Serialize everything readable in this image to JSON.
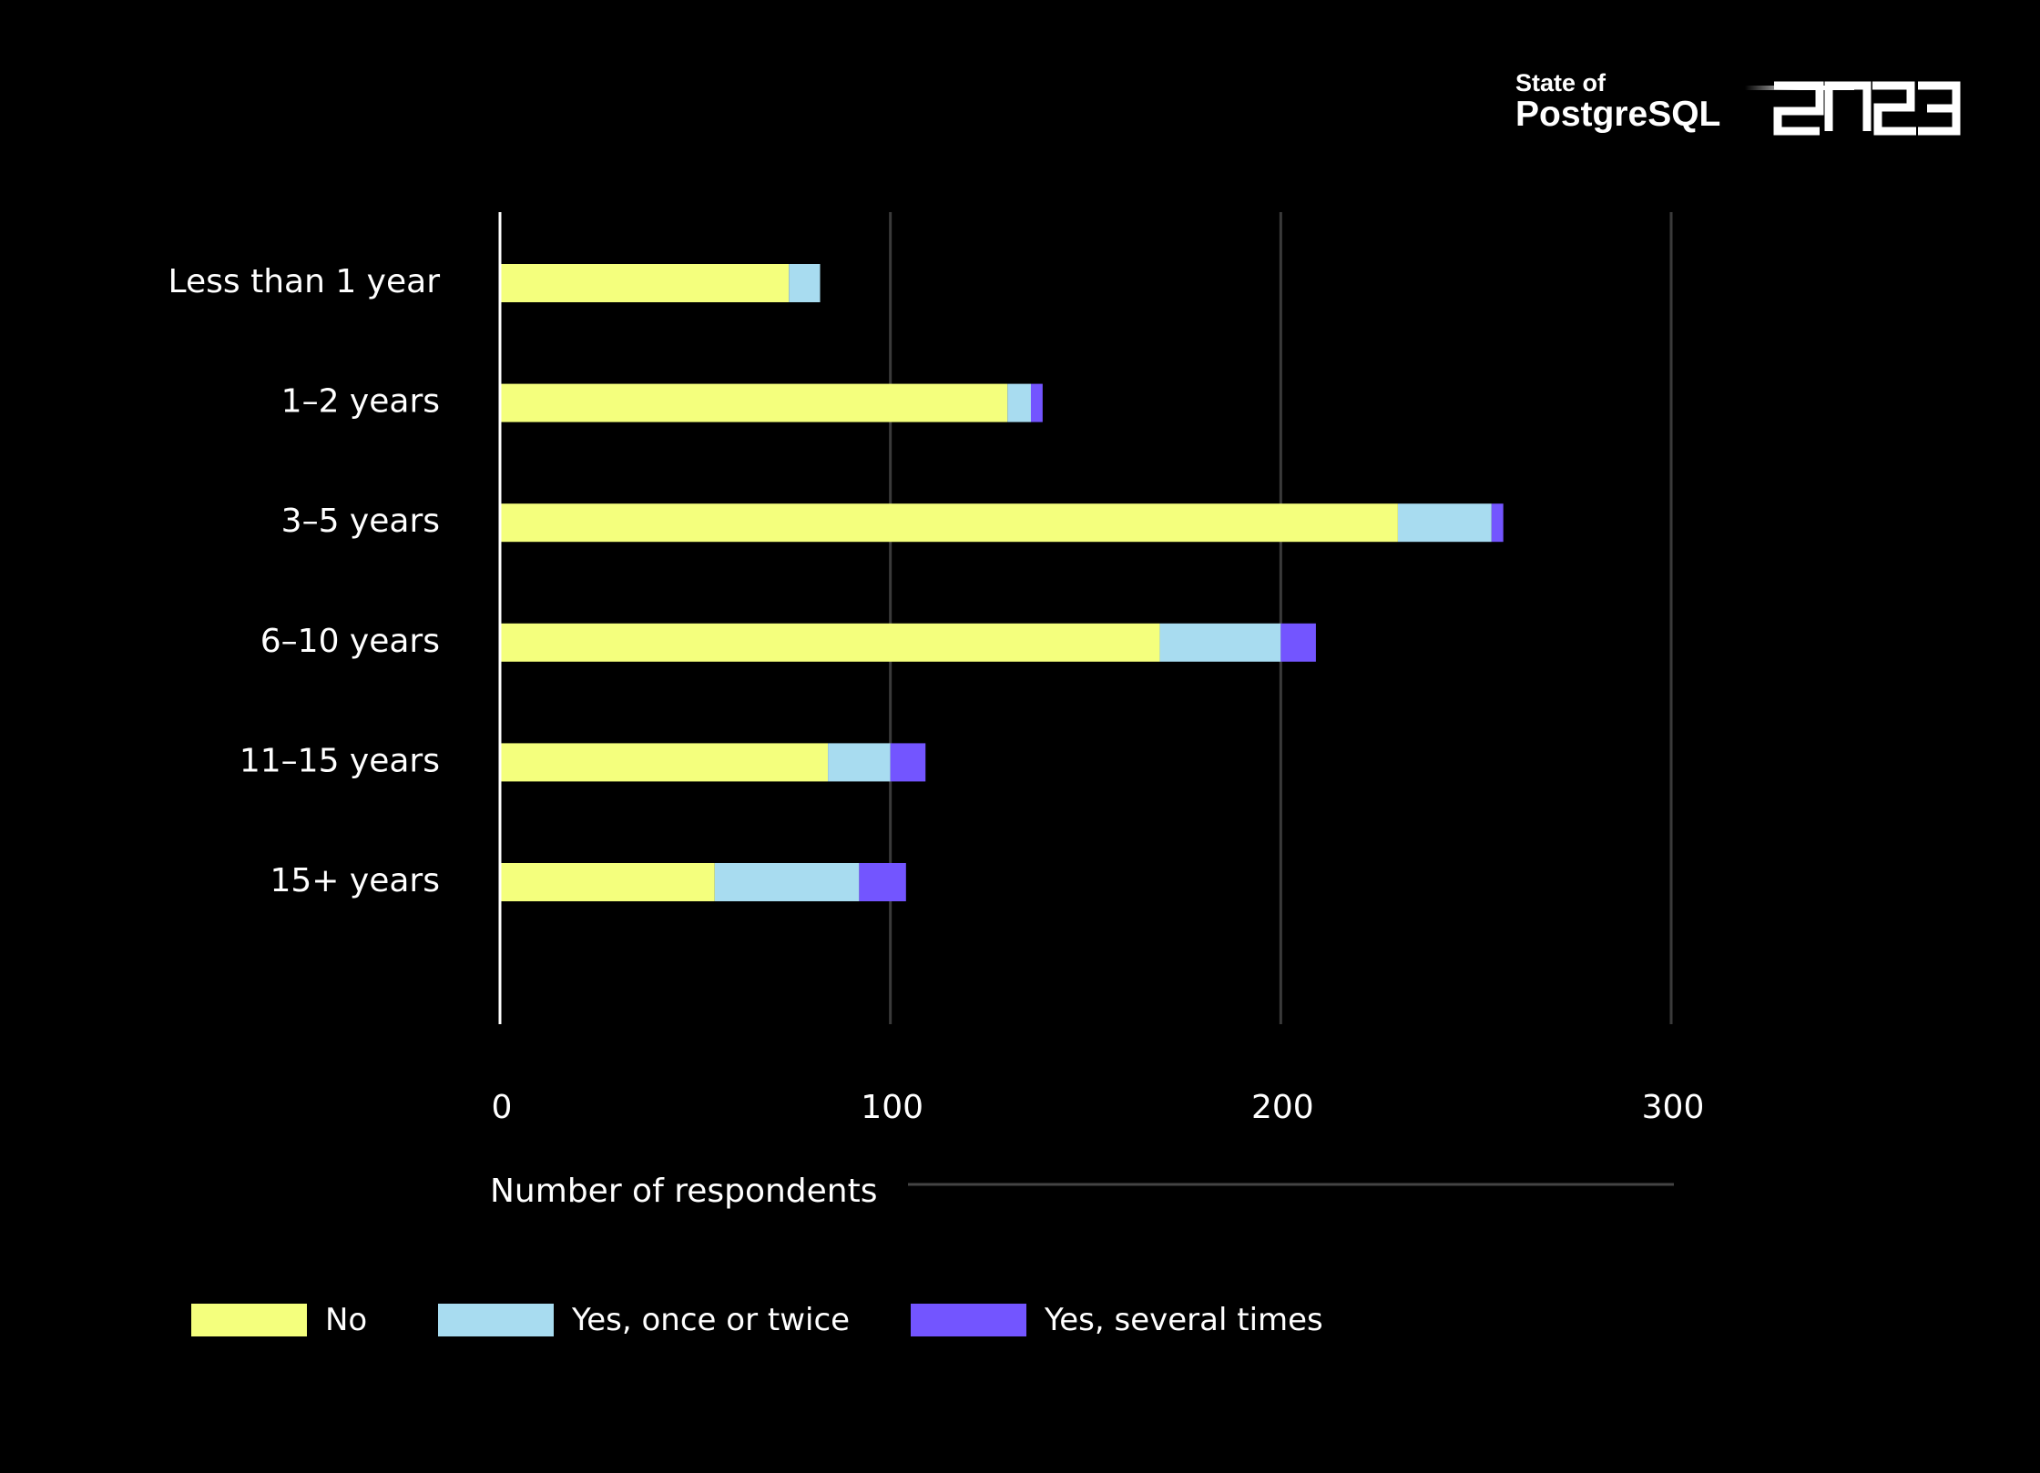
{
  "logo": {
    "line1": "State of",
    "line2": "PostgreSQL",
    "year": "2023"
  },
  "chart_data": {
    "type": "bar",
    "orientation": "horizontal",
    "stacked": true,
    "categories": [
      "Less than 1 year",
      "1–2 years",
      "3–5 years",
      "6–10 years",
      "11–15 years",
      "15+ years"
    ],
    "series": [
      {
        "name": "No",
        "color": "#f4ff7d",
        "values": [
          74,
          130,
          230,
          169,
          84,
          55
        ]
      },
      {
        "name": "Yes, once or twice",
        "color": "#a8dcf0",
        "values": [
          8,
          6,
          24,
          31,
          16,
          37
        ]
      },
      {
        "name": "Yes, several times",
        "color": "#7355ff",
        "values": [
          0,
          3,
          3,
          9,
          9,
          12
        ]
      }
    ],
    "xlabel": "Number of respondents",
    "xlim": [
      0,
      300
    ],
    "xticks": [
      0,
      100,
      200,
      300
    ],
    "grid": true,
    "legend_position": "bottom-left"
  }
}
